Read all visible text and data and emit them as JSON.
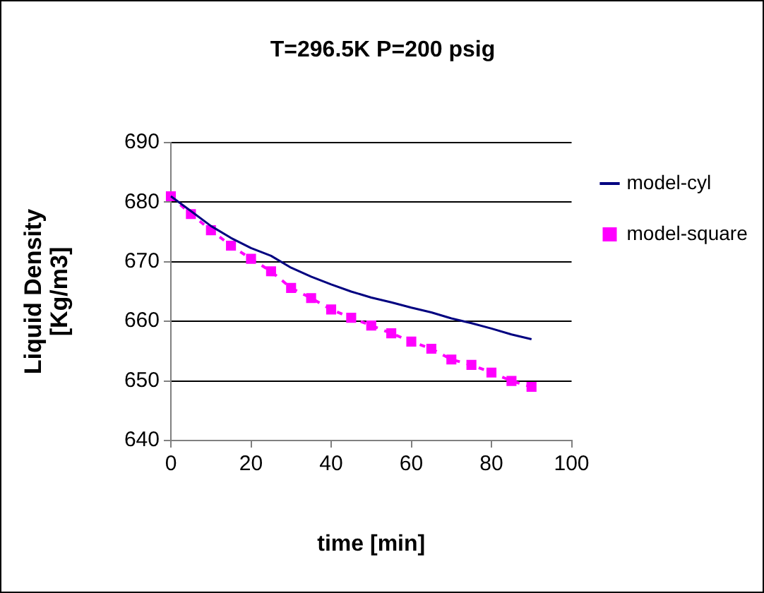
{
  "chart_data": {
    "type": "line",
    "title": "T=296.5K P=200 psig",
    "xlabel": "time [min]",
    "ylabel": "Liquid Density [Kg/m3]",
    "x": [
      0,
      5,
      10,
      15,
      20,
      25,
      30,
      35,
      40,
      45,
      50,
      55,
      60,
      65,
      70,
      75,
      80,
      85,
      90
    ],
    "series": [
      {
        "name": "model-cyl",
        "color": "#000080",
        "marker": "none",
        "line_style": "solid",
        "values": [
          681,
          678.5,
          676,
          674,
          672.3,
          671,
          669,
          667.5,
          666.2,
          665,
          664,
          663.2,
          662.3,
          661.5,
          660.5,
          659.7,
          658.8,
          657.8,
          657
        ]
      },
      {
        "name": "model-square",
        "color": "#ff00ff",
        "marker": "square",
        "line_style": "dotted",
        "values": [
          681,
          678,
          675.3,
          672.7,
          670.5,
          668.4,
          665.6,
          663.9,
          662,
          660.6,
          659.3,
          658,
          656.6,
          655.4,
          653.6,
          652.7,
          651.4,
          650,
          649
        ]
      }
    ],
    "xlim": [
      0,
      100
    ],
    "xticks": [
      0,
      20,
      40,
      60,
      80,
      100
    ],
    "ylim": [
      640,
      690
    ],
    "yticks": [
      640,
      650,
      660,
      670,
      680,
      690
    ],
    "grid": "y",
    "legend": "top right"
  }
}
